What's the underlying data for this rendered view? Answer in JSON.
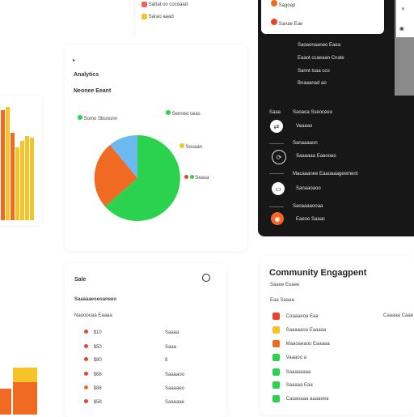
{
  "top_legend": {
    "item1": "Sattat oo cocoaad",
    "item2": "Sarao aaad",
    "color1": "#f2605a",
    "color2": "#f6c429"
  },
  "analytics_card": {
    "title": "Analytics",
    "subtitle": "Neonee Eeant",
    "legend": [
      {
        "label": "Somo Sbunonn",
        "color": "#2bd24d"
      },
      {
        "label": "Sennee ceas",
        "color": "#2bd24d"
      },
      {
        "label": "Sosaan",
        "color": "#f6c429"
      },
      {
        "label": "Seasa",
        "color": "#e8432c"
      }
    ],
    "pie_colors": [
      "#2bd24d",
      "#f06a23",
      "#6cb8f0"
    ]
  },
  "bar_chart_top": {
    "colors": [
      "#f06a23",
      "#f6c429"
    ]
  },
  "bar_chart_bottom": {
    "colors": [
      "#f6c429",
      "#f06a23"
    ]
  },
  "sidebar": {
    "dropdown": {
      "item1": "Sagoap",
      "item2": "Sanae Eae"
    },
    "menu_top": [
      "Saoaonaaneo Eaea",
      "Eaaot ccaeaan Cnate",
      "Sannt tsaa cco",
      "Bnaaanad ao"
    ],
    "section_left": "Saaa",
    "items": [
      {
        "header": "Saoaoa Sseoceeo",
        "label": "Vaaaao"
      },
      {
        "header": "Sanaaaaon",
        "label": "Saaaaaa Eaaooao"
      },
      {
        "header": "Macaaanee Eaaoaaageement",
        "label": "Sanaaoaoo"
      },
      {
        "header": "Saoaaaaooaa",
        "label": "Eaeoe Saaac"
      }
    ]
  },
  "sales_card": {
    "title": "Sale",
    "subtitle": "Saaaaaeoeoaneeo",
    "col_header": "Naooooaa Eaaaa",
    "rows": [
      {
        "num": "$10",
        "val": "Saaaa",
        "color": "#e8432c"
      },
      {
        "num": "$50",
        "val": "Saaa",
        "color": "#e8432c"
      },
      {
        "num": "$80",
        "val": "8",
        "color": "#e8432c"
      },
      {
        "num": "$68",
        "val": "Saaaaoo",
        "color": "#e8432c"
      },
      {
        "num": "$88",
        "val": "Saaaaeo",
        "color": "#f06a23"
      },
      {
        "num": "$58",
        "val": "Saaaaae",
        "color": "#e8432c"
      }
    ]
  },
  "community_card": {
    "title": "Community Engagpent",
    "subtitle": "Saaoe Eoaee",
    "col_left": "Eaa Saaaa",
    "col_right": "Caaaaa Caae",
    "rows": [
      {
        "label": "Coaaaeoa Eaa",
        "color": "#e8432c"
      },
      {
        "label": "Saaaaaoa Eaaaaa",
        "color": "#f6c429"
      },
      {
        "label": "Maaoaeaoo Eaaaaa",
        "color": "#f06a23"
      },
      {
        "label": "Vaaaoo a",
        "color": "#2bd24d"
      },
      {
        "label": "Saaaaaaaa",
        "color": "#2bd24d"
      },
      {
        "label": "Saaaaa Eaa",
        "color": "#2bd24d"
      },
      {
        "label": "Caaaoaaa aaaaeea",
        "color": "#2bd24d"
      }
    ]
  }
}
